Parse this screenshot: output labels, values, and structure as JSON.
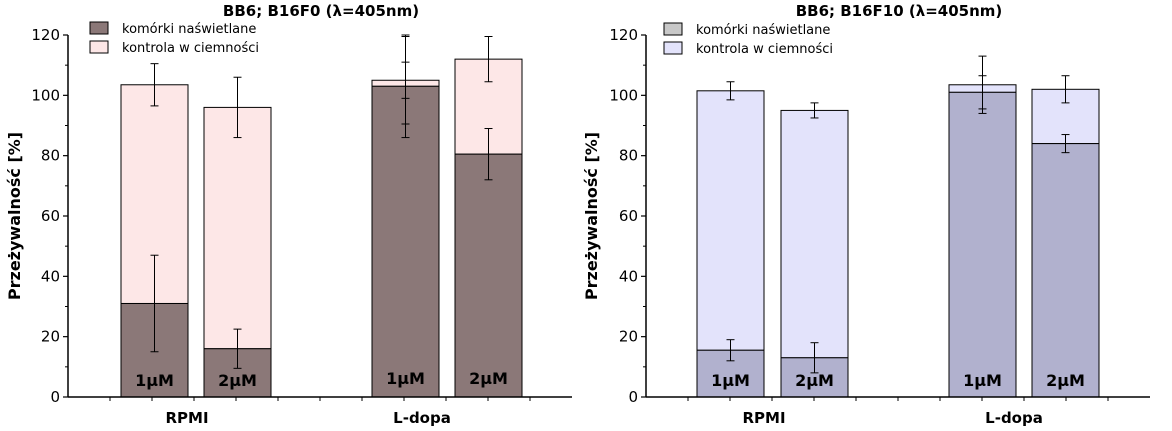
{
  "chart_data": [
    {
      "type": "bar",
      "stacked": true,
      "title": "BB6; B16F0 (λ=405nm)",
      "ylabel": "Przeżywalność [%]",
      "xlabel": "",
      "ylim": [
        0,
        120
      ],
      "yticks": [
        0,
        20,
        40,
        60,
        80,
        100,
        120
      ],
      "groups": [
        "RPMI",
        "L-dopa"
      ],
      "bar_labels": [
        "1μM",
        "2μM",
        "1μM",
        "2μM"
      ],
      "bar_groups": [
        0,
        0,
        1,
        1
      ],
      "legend_position": "top-left",
      "series": [
        {
          "name": "komórki naświetlane",
          "color": "#8b7878",
          "values": [
            31,
            16,
            103,
            80.5
          ],
          "errors": [
            16,
            6.5,
            17,
            8.5
          ]
        },
        {
          "name": "kontrola w ciemności",
          "color": "#fde7e7",
          "totals": [
            103.5,
            96,
            105,
            112
          ],
          "errors": [
            7,
            10,
            14.5,
            7.5
          ]
        }
      ],
      "extra_errorbars": [
        {
          "bar": 2,
          "value": 105,
          "error": 6
        }
      ]
    },
    {
      "type": "bar",
      "stacked": true,
      "title": "BB6; B16F10 (λ=405nm)",
      "ylabel": "Przeżywalność [%]",
      "xlabel": "",
      "ylim": [
        0,
        120
      ],
      "yticks": [
        0,
        20,
        40,
        60,
        80,
        100,
        120
      ],
      "groups": [
        "RPMI",
        "L-dopa"
      ],
      "bar_labels": [
        "1μM",
        "2μM",
        "1μM",
        "2μM"
      ],
      "bar_groups": [
        0,
        0,
        1,
        1
      ],
      "legend_position": "top-left",
      "legend_swatch_colors": [
        "#c8c8c8",
        "#e3e3fb"
      ],
      "series": [
        {
          "name": "komórki naświetlane",
          "color": "#b1b1ce",
          "values": [
            15.5,
            13,
            101,
            84
          ],
          "errors": [
            3.5,
            5,
            5.5,
            3
          ]
        },
        {
          "name": "kontrola w ciemności",
          "color": "#e3e3fb",
          "totals": [
            101.5,
            95,
            103.5,
            102
          ],
          "errors": [
            3,
            2.5,
            9.5,
            4.5
          ]
        }
      ]
    }
  ]
}
